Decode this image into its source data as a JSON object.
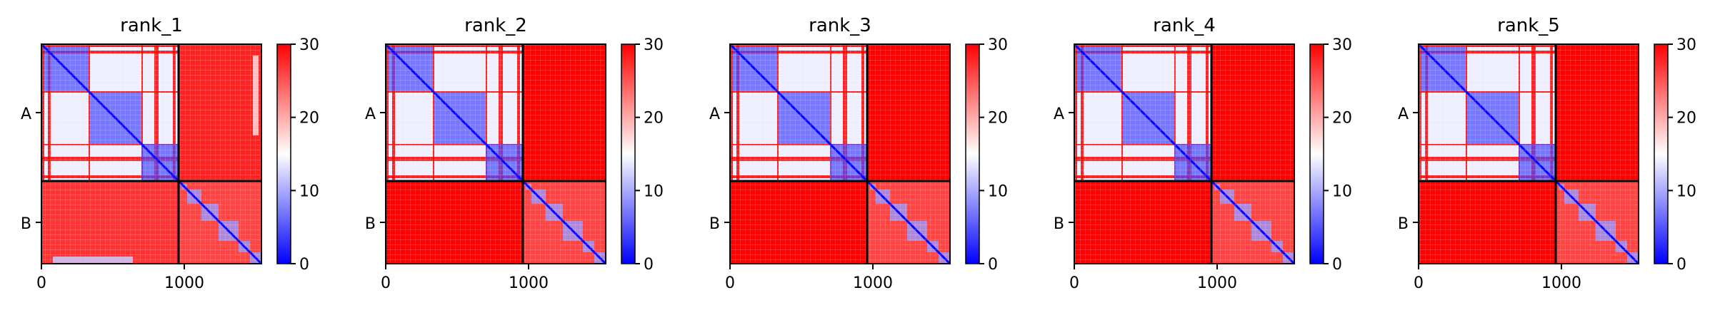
{
  "chart_data": [
    {
      "type": "heatmap",
      "title": "rank_1",
      "row_tick_labels": [
        "A",
        "B"
      ],
      "x_tick_values": [
        0,
        1000
      ],
      "x_range": [
        0,
        1540
      ],
      "y_range": [
        0,
        1540
      ],
      "chain_boundary": 960,
      "color_scale": {
        "min": 0,
        "max": 30,
        "ticks": [
          0,
          10,
          20,
          30
        ],
        "low": "#0000ff",
        "mid": "#ffffff",
        "high": "#ff0000"
      },
      "blocks": {
        "AA": 14,
        "AB": 28,
        "BA": 27,
        "BB": 16
      },
      "interchain_signal": "partial"
    },
    {
      "type": "heatmap",
      "title": "rank_2",
      "row_tick_labels": [
        "A",
        "B"
      ],
      "x_tick_values": [
        0,
        1000
      ],
      "x_range": [
        0,
        1540
      ],
      "y_range": [
        0,
        1540
      ],
      "chain_boundary": 960,
      "color_scale": {
        "min": 0,
        "max": 30,
        "ticks": [
          0,
          10,
          20,
          30
        ],
        "low": "#0000ff",
        "mid": "#ffffff",
        "high": "#ff0000"
      },
      "blocks": {
        "AA": 14,
        "AB": 30,
        "BA": 30,
        "BB": 16
      },
      "interchain_signal": "none"
    },
    {
      "type": "heatmap",
      "title": "rank_3",
      "row_tick_labels": [
        "A",
        "B"
      ],
      "x_tick_values": [
        0,
        1000
      ],
      "x_range": [
        0,
        1540
      ],
      "y_range": [
        0,
        1540
      ],
      "chain_boundary": 960,
      "color_scale": {
        "min": 0,
        "max": 30,
        "ticks": [
          0,
          10,
          20,
          30
        ],
        "low": "#0000ff",
        "mid": "#ffffff",
        "high": "#ff0000"
      },
      "blocks": {
        "AA": 14,
        "AB": 30,
        "BA": 30,
        "BB": 16
      },
      "interchain_signal": "none"
    },
    {
      "type": "heatmap",
      "title": "rank_4",
      "row_tick_labels": [
        "A",
        "B"
      ],
      "x_tick_values": [
        0,
        1000
      ],
      "x_range": [
        0,
        1540
      ],
      "y_range": [
        0,
        1540
      ],
      "chain_boundary": 960,
      "color_scale": {
        "min": 0,
        "max": 30,
        "ticks": [
          0,
          10,
          20,
          30
        ],
        "low": "#0000ff",
        "mid": "#ffffff",
        "high": "#ff0000"
      },
      "blocks": {
        "AA": 14,
        "AB": 30,
        "BA": 30,
        "BB": 16
      },
      "interchain_signal": "none"
    },
    {
      "type": "heatmap",
      "title": "rank_5",
      "row_tick_labels": [
        "A",
        "B"
      ],
      "x_tick_values": [
        0,
        1000
      ],
      "x_range": [
        0,
        1540
      ],
      "y_range": [
        0,
        1540
      ],
      "chain_boundary": 960,
      "color_scale": {
        "min": 0,
        "max": 30,
        "ticks": [
          0,
          10,
          20,
          30
        ],
        "low": "#0000ff",
        "mid": "#ffffff",
        "high": "#ff0000"
      },
      "blocks": {
        "AA": 14,
        "AB": 30,
        "BA": 30,
        "BB": 16
      },
      "interchain_signal": "none"
    }
  ]
}
